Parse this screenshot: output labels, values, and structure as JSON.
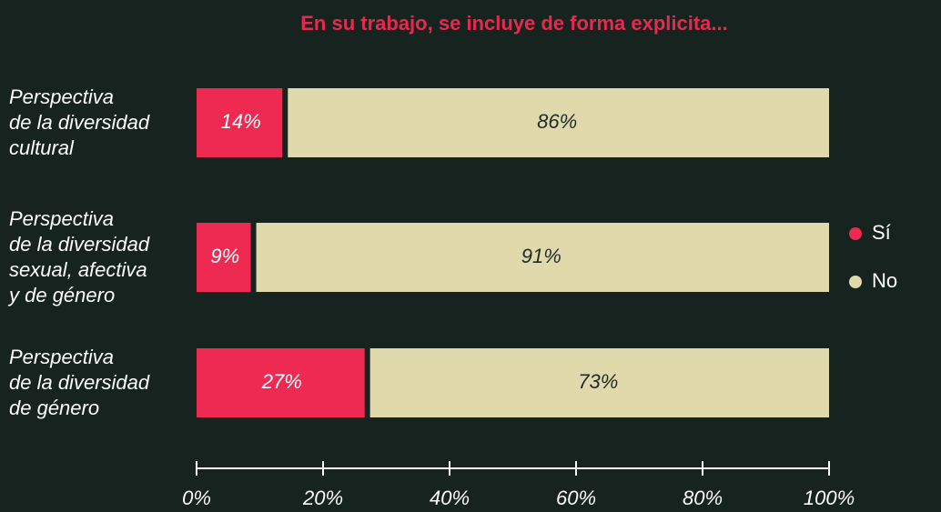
{
  "chart_data": {
    "type": "stacked_barh",
    "title": "En su trabajo, se incluye de forma explicita...",
    "categories": [
      "Perspectiva\nde la diversidad\ncultural",
      "Perspectiva\nde la diversidad\nsexual, afectiva\ny de género",
      "Perspectiva\nde la diversidad\nde género"
    ],
    "series": [
      {
        "name": "Sí",
        "color": "#ee2a52",
        "values": [
          14,
          9,
          27
        ],
        "value_labels": [
          "14%",
          "9%",
          "27%"
        ]
      },
      {
        "name": "No",
        "color": "#e0d9ab",
        "values": [
          86,
          91,
          73
        ],
        "value_labels": [
          "86%",
          "91%",
          "73%"
        ]
      }
    ],
    "xlim": [
      0,
      100
    ],
    "xticks": [
      {
        "value": 0,
        "label": "0%"
      },
      {
        "value": 20,
        "label": "20%"
      },
      {
        "value": 40,
        "label": "40%"
      },
      {
        "value": 60,
        "label": "60%"
      },
      {
        "value": 80,
        "label": "80%"
      },
      {
        "value": 100,
        "label": "100%"
      }
    ],
    "legend": "right"
  }
}
